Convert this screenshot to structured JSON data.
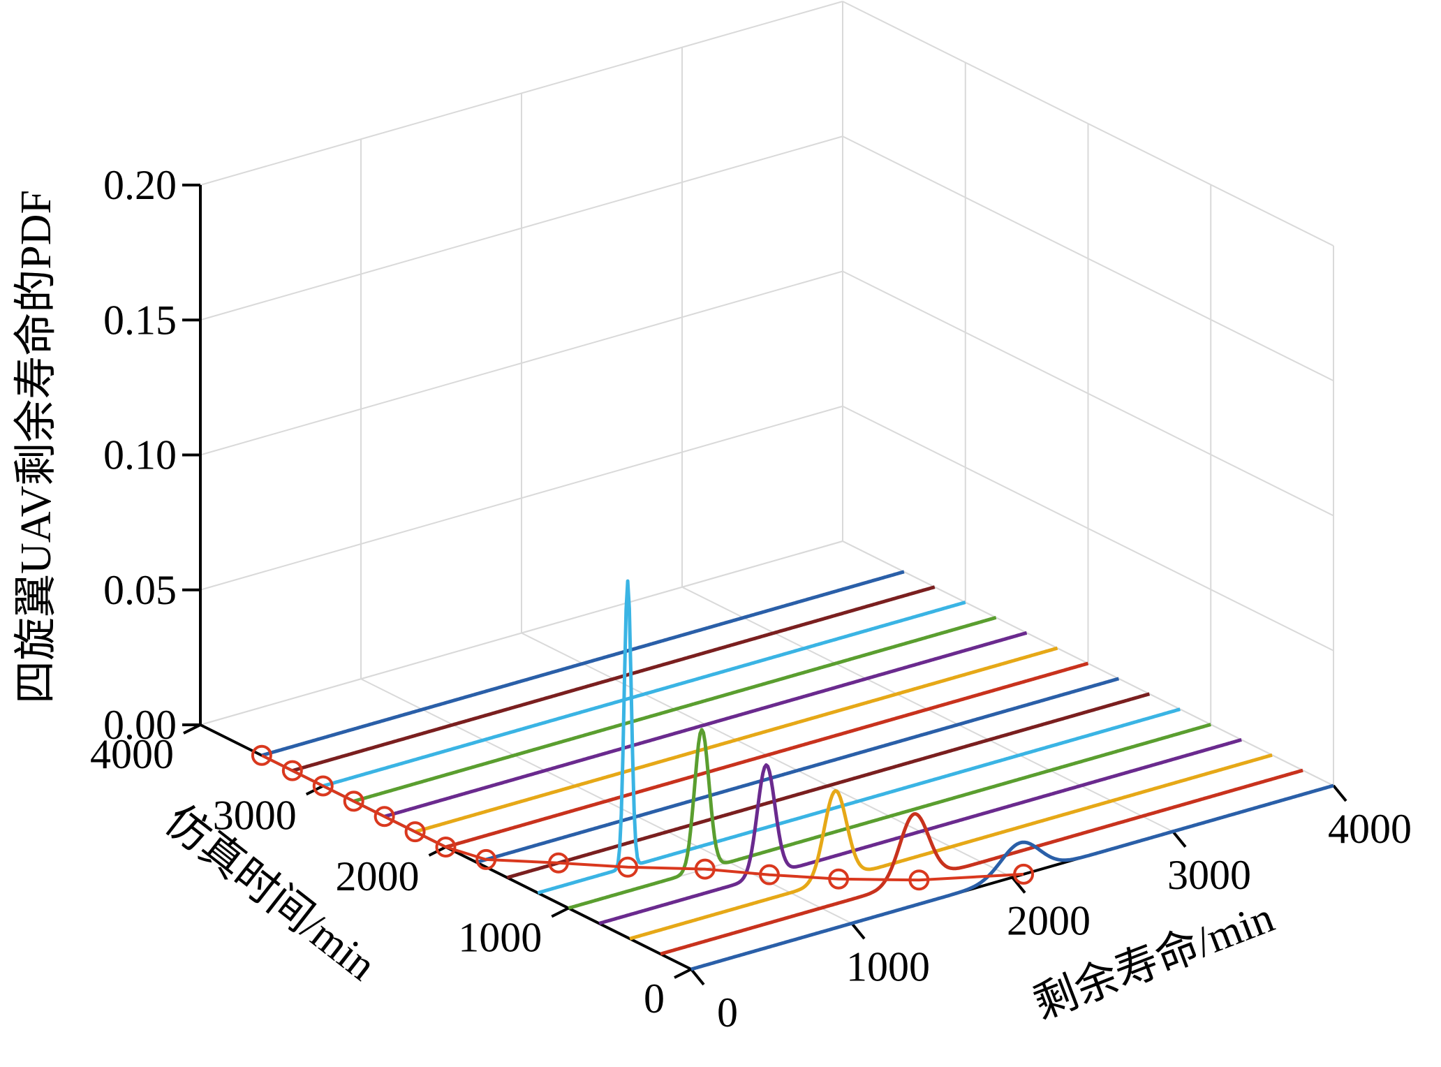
{
  "chart_data": {
    "type": "line",
    "zlabel": "四旋翼UAV剩余寿命的PDF",
    "xlabel": "剩余寿命/min",
    "ylabel": "仿真时间/min",
    "x_ticks": [
      "0",
      "1000",
      "2000",
      "3000",
      "4000"
    ],
    "y_ticks": [
      "0",
      "1000",
      "2000",
      "3000",
      "4000"
    ],
    "z_ticks": [
      "0.00",
      "0.05",
      "0.10",
      "0.15",
      "0.20"
    ],
    "xlim": [
      0,
      4000
    ],
    "ylim": [
      0,
      4000
    ],
    "zlim": [
      0,
      0.2
    ],
    "grid": true,
    "series": [
      {
        "sim_time": 0,
        "color": "#2a5fa8",
        "peak_x": 2050,
        "peak_pdf": 0.012,
        "width": 120
      },
      {
        "sim_time": 250,
        "color": "#c8321d",
        "peak_x": 1580,
        "peak_pdf": 0.025,
        "width": 90
      },
      {
        "sim_time": 500,
        "color": "#e6a817",
        "peak_x": 1280,
        "peak_pdf": 0.033,
        "width": 70
      },
      {
        "sim_time": 750,
        "color": "#6a2a8e",
        "peak_x": 1040,
        "peak_pdf": 0.041,
        "width": 55
      },
      {
        "sim_time": 1000,
        "color": "#5a9e2f",
        "peak_x": 830,
        "peak_pdf": 0.052,
        "width": 45
      },
      {
        "sim_time": 1250,
        "color": "#3ab4e4",
        "peak_x": 560,
        "peak_pdf": 0.106,
        "width": 22
      },
      {
        "sim_time": 1500,
        "color": "#7a1f1f",
        "peak_x": 0,
        "peak_pdf": 0,
        "width": 50
      },
      {
        "sim_time": 1750,
        "color": "#2a5fa8",
        "peak_x": 0,
        "peak_pdf": 0,
        "width": 50
      },
      {
        "sim_time": 2000,
        "color": "#c8321d",
        "peak_x": 0,
        "peak_pdf": 0,
        "width": 50
      },
      {
        "sim_time": 2250,
        "color": "#e6a817",
        "peak_x": 0,
        "peak_pdf": 0,
        "width": 50
      },
      {
        "sim_time": 2500,
        "color": "#6a2a8e",
        "peak_x": 0,
        "peak_pdf": 0,
        "width": 50
      },
      {
        "sim_time": 2750,
        "color": "#5a9e2f",
        "peak_x": 0,
        "peak_pdf": 0,
        "width": 50
      },
      {
        "sim_time": 3000,
        "color": "#3ab4e4",
        "peak_x": 0,
        "peak_pdf": 0,
        "width": 50
      },
      {
        "sim_time": 3250,
        "color": "#7a1f1f",
        "peak_x": 0,
        "peak_pdf": 0,
        "width": 50
      },
      {
        "sim_time": 3500,
        "color": "#2a5fa8",
        "peak_x": 0,
        "peak_pdf": 0,
        "width": 50
      }
    ],
    "actual_rul": {
      "color": "#d9381e",
      "marker": "circle",
      "points": [
        {
          "sim_time": 0,
          "rul": 2070
        },
        {
          "sim_time": 250,
          "rul": 1610
        },
        {
          "sim_time": 500,
          "rul": 1300
        },
        {
          "sim_time": 750,
          "rul": 1060
        },
        {
          "sim_time": 1000,
          "rul": 850
        },
        {
          "sim_time": 1250,
          "rul": 560
        },
        {
          "sim_time": 1500,
          "rul": 320
        },
        {
          "sim_time": 1750,
          "rul": 60
        },
        {
          "sim_time": 2000,
          "rul": 0
        },
        {
          "sim_time": 2250,
          "rul": 0
        },
        {
          "sim_time": 2500,
          "rul": 0
        },
        {
          "sim_time": 2750,
          "rul": 0
        },
        {
          "sim_time": 3000,
          "rul": 0
        },
        {
          "sim_time": 3250,
          "rul": 0
        },
        {
          "sim_time": 3500,
          "rul": 0
        }
      ]
    }
  }
}
